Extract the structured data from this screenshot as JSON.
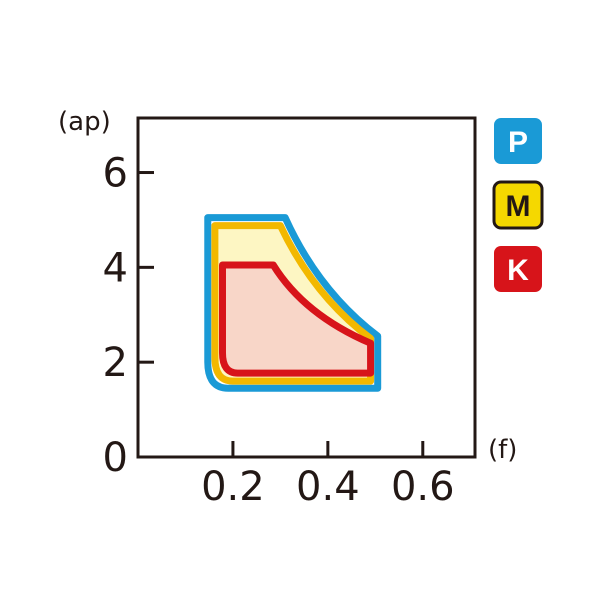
{
  "chart_data": {
    "type": "area",
    "xlabel": "(f)",
    "ylabel": "(ap)",
    "xlim": [
      0,
      0.71
    ],
    "ylim": [
      0,
      7.15
    ],
    "xticks": [
      "0.2",
      "0.4",
      "0.6"
    ],
    "xtick_values": [
      0.2,
      0.4,
      0.6
    ],
    "yticks": [
      "0",
      "2",
      "4",
      "6"
    ],
    "ytick_values": [
      0,
      2,
      4,
      6
    ],
    "grid": false,
    "legend_placement": "right",
    "series": [
      {
        "name": "P",
        "stroke": "#1a9ad6",
        "fill": "#ffffff",
        "badge_text": "#ffffff",
        "points": [
          [
            0.147,
            5.05
          ],
          [
            0.31,
            5.05
          ],
          [
            0.505,
            2.55
          ],
          [
            0.505,
            1.45
          ],
          [
            0.19,
            1.45
          ],
          [
            0.147,
            2.0
          ]
        ],
        "curve_control": [
          0.38,
          3.5
        ]
      },
      {
        "name": "M",
        "stroke": "#f2b800",
        "fill": "#fdf6c3",
        "badge_text": "#231815",
        "points": [
          [
            0.162,
            4.88
          ],
          [
            0.3,
            4.88
          ],
          [
            0.49,
            2.5
          ],
          [
            0.49,
            1.6
          ],
          [
            0.2,
            1.6
          ],
          [
            0.162,
            2.1
          ]
        ],
        "curve_control": [
          0.37,
          3.4
        ]
      },
      {
        "name": "K",
        "stroke": "#d7141a",
        "fill": "#f8d6c8",
        "badge_text": "#ffffff",
        "points": [
          [
            0.178,
            4.05
          ],
          [
            0.285,
            4.05
          ],
          [
            0.49,
            2.4
          ],
          [
            0.49,
            1.77
          ],
          [
            0.21,
            1.77
          ],
          [
            0.178,
            2.2
          ]
        ],
        "curve_control": [
          0.35,
          3.0
        ]
      }
    ]
  },
  "legend_colors": {
    "P": "#1a9ad6",
    "M": "#f5d800",
    "K": "#d7141a"
  }
}
